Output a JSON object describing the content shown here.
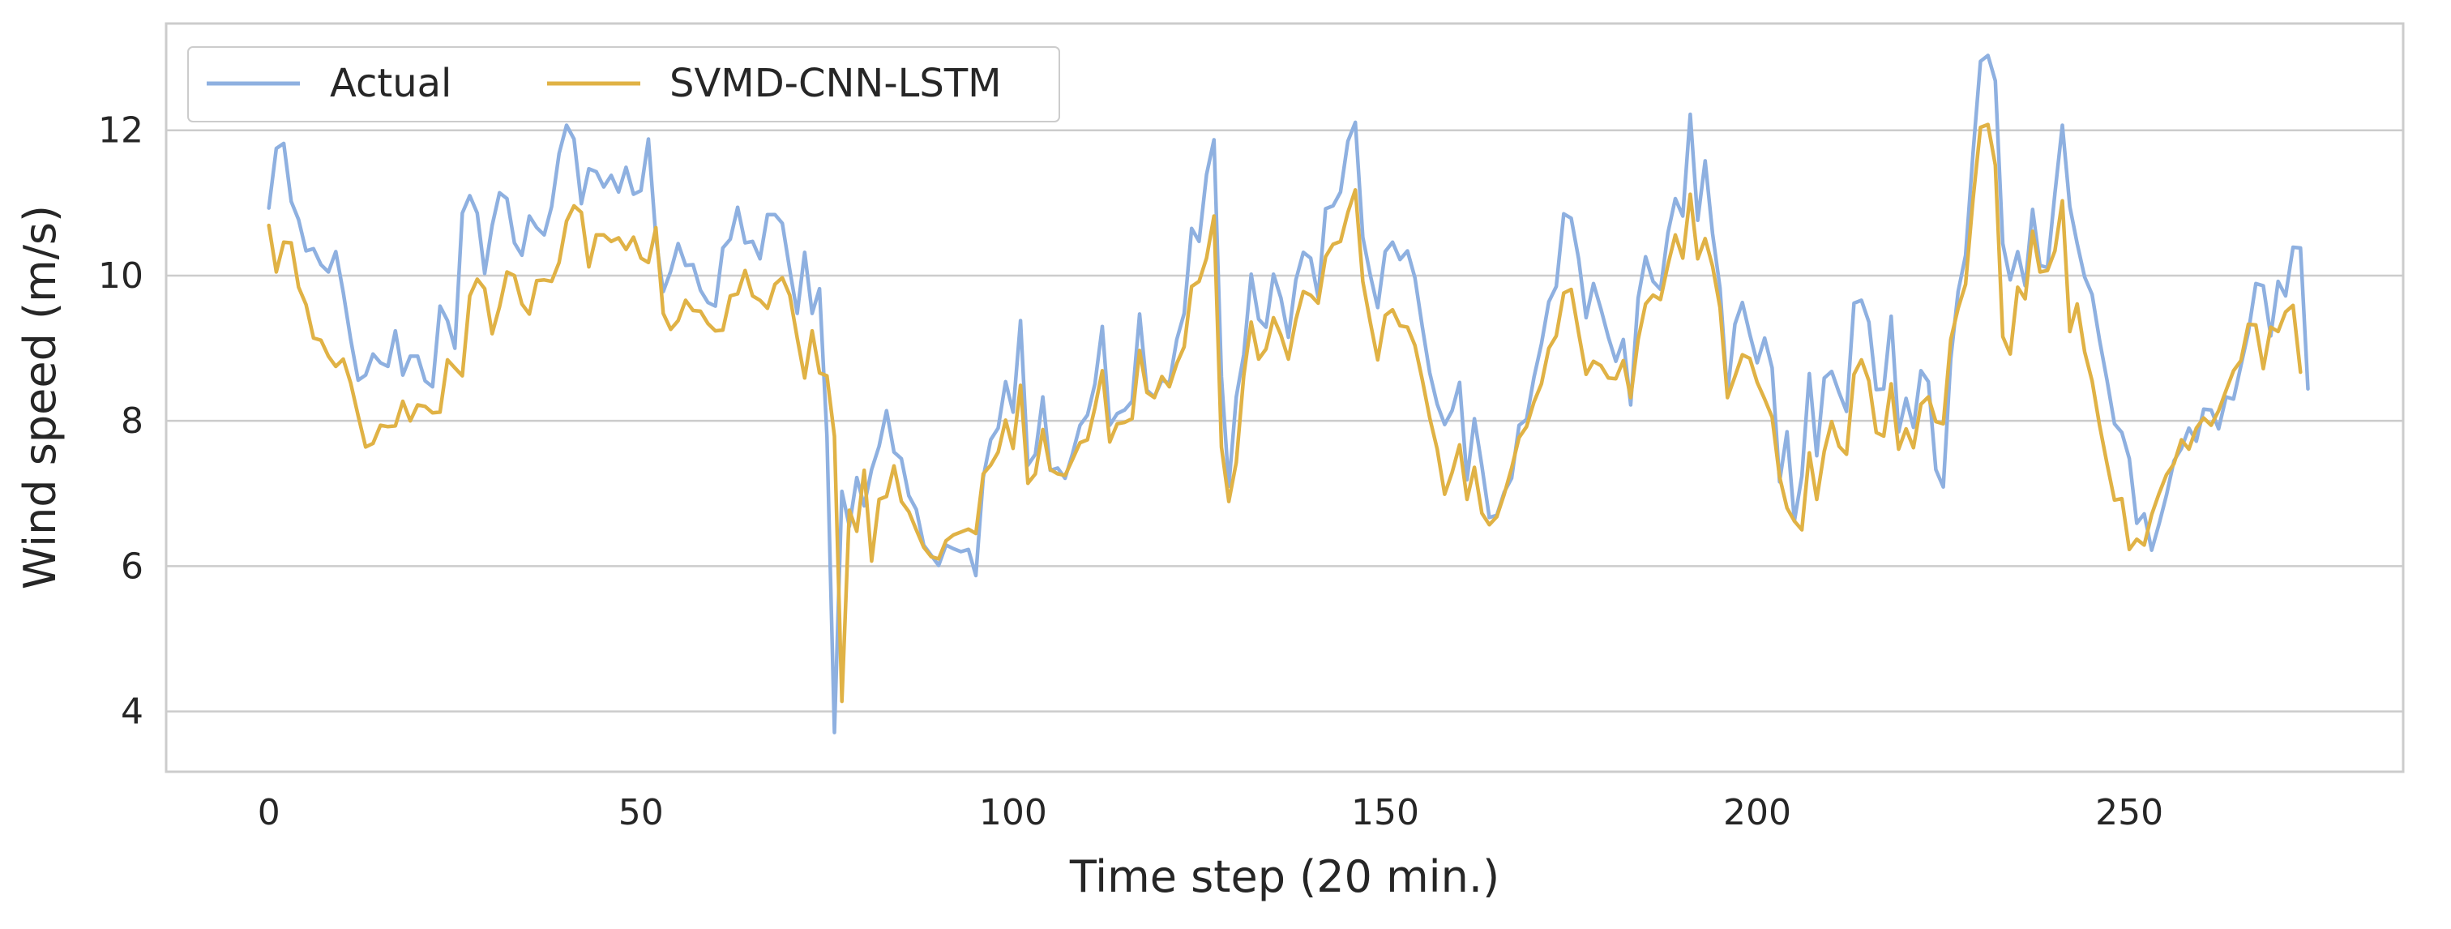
{
  "chart_data": {
    "type": "line",
    "title": "",
    "xlabel": "Time step (20 min.)",
    "ylabel": "Wind speed (m/s)",
    "xlim": [
      -13.8,
      286.8
    ],
    "ylim": [
      3.17,
      13.47
    ],
    "xticks": [
      0,
      50,
      100,
      150,
      200,
      250
    ],
    "yticks": [
      4,
      6,
      8,
      10,
      12
    ],
    "grid": "y",
    "legend": "top-left",
    "colors": {
      "axes": "#cccccc",
      "grid": "#cccccc",
      "text": "#262626"
    },
    "series": [
      {
        "name": "Actual",
        "color": "#8eb0e0",
        "values": [
          10.93,
          11.75,
          11.82,
          11.02,
          10.77,
          10.34,
          10.37,
          10.15,
          10.05,
          10.33,
          9.77,
          9.12,
          8.56,
          8.63,
          8.92,
          8.8,
          8.75,
          9.24,
          8.63,
          8.89,
          8.89,
          8.55,
          8.47,
          9.58,
          9.38,
          9.0,
          10.86,
          11.1,
          10.86,
          10.03,
          10.69,
          11.14,
          11.06,
          10.45,
          10.28,
          10.82,
          10.66,
          10.56,
          10.95,
          11.68,
          12.07,
          11.88,
          10.99,
          11.47,
          11.43,
          11.22,
          11.38,
          11.15,
          11.49,
          11.12,
          11.17,
          11.88,
          10.53,
          9.78,
          10.06,
          10.44,
          10.14,
          10.15,
          9.8,
          9.63,
          9.58,
          10.38,
          10.5,
          10.94,
          10.45,
          10.47,
          10.23,
          10.84,
          10.84,
          10.72,
          10.08,
          9.48,
          10.32,
          9.48,
          9.82,
          7.78,
          3.71,
          7.03,
          6.55,
          7.22,
          6.83,
          7.33,
          7.65,
          8.14,
          7.57,
          7.48,
          6.97,
          6.78,
          6.29,
          6.15,
          6.01,
          6.29,
          6.24,
          6.2,
          6.23,
          5.87,
          7.22,
          7.74,
          7.9,
          8.54,
          8.12,
          9.38,
          7.39,
          7.54,
          8.33,
          7.32,
          7.35,
          7.21,
          7.55,
          7.94,
          8.08,
          8.51,
          9.3,
          7.94,
          8.1,
          8.15,
          8.27,
          9.47,
          8.42,
          8.33,
          8.56,
          8.52,
          9.12,
          9.48,
          10.65,
          10.47,
          11.39,
          11.87,
          8.61,
          7.1,
          8.33,
          8.91,
          10.02,
          9.4,
          9.29,
          10.02,
          9.69,
          9.15,
          9.94,
          10.32,
          10.24,
          9.7,
          10.92,
          10.96,
          11.15,
          11.85,
          12.11,
          10.53,
          10.01,
          9.56,
          10.33,
          10.46,
          10.22,
          10.34,
          9.97,
          9.29,
          8.66,
          8.23,
          7.95,
          8.14,
          8.53,
          7.19,
          8.03,
          7.38,
          6.67,
          6.7,
          7.02,
          7.21,
          7.94,
          8.02,
          8.6,
          9.06,
          9.64,
          9.85,
          10.85,
          10.79,
          10.23,
          9.42,
          9.89,
          9.54,
          9.15,
          8.82,
          9.12,
          8.22,
          9.69,
          10.26,
          9.92,
          9.81,
          10.59,
          11.06,
          10.82,
          12.22,
          10.76,
          11.58,
          10.58,
          9.83,
          8.37,
          9.33,
          9.63,
          9.19,
          8.8,
          9.14,
          8.73,
          7.16,
          7.85,
          6.62,
          7.24,
          8.65,
          7.52,
          8.59,
          8.68,
          8.39,
          8.13,
          9.62,
          9.66,
          9.36,
          8.43,
          8.44,
          9.44,
          7.85,
          8.31,
          7.91,
          8.69,
          8.54,
          7.33,
          7.09,
          8.85,
          9.78,
          10.28,
          11.69,
          12.95,
          13.03,
          12.68,
          10.44,
          9.94,
          10.33,
          9.86,
          10.91,
          10.14,
          10.11,
          11.13,
          12.07,
          10.95,
          10.44,
          9.98,
          9.74,
          9.11,
          8.56,
          7.96,
          7.84,
          7.48,
          6.59,
          6.72,
          6.22,
          6.58,
          6.98,
          7.45,
          7.62,
          7.9,
          7.72,
          8.16,
          8.15,
          7.89,
          8.33,
          8.3,
          8.76,
          9.22,
          9.89,
          9.86,
          9.17,
          9.92,
          9.72,
          10.39,
          10.38,
          8.44
        ]
      },
      {
        "name": "SVMD-CNN-LSTM",
        "color": "#e0b245",
        "values": [
          10.69,
          10.05,
          10.46,
          10.45,
          9.84,
          9.6,
          9.14,
          9.11,
          8.89,
          8.75,
          8.85,
          8.52,
          8.07,
          7.64,
          7.69,
          7.94,
          7.92,
          7.93,
          8.27,
          8.0,
          8.22,
          8.2,
          8.11,
          8.12,
          8.84,
          8.73,
          8.62,
          9.72,
          9.95,
          9.82,
          9.2,
          9.57,
          10.05,
          10.0,
          9.61,
          9.47,
          9.93,
          9.94,
          9.92,
          10.18,
          10.75,
          10.96,
          10.87,
          10.12,
          10.56,
          10.56,
          10.47,
          10.52,
          10.36,
          10.53,
          10.24,
          10.18,
          10.66,
          9.48,
          9.26,
          9.38,
          9.66,
          9.52,
          9.51,
          9.34,
          9.24,
          9.25,
          9.72,
          9.75,
          10.07,
          9.72,
          9.66,
          9.55,
          9.88,
          9.97,
          9.73,
          9.14,
          8.59,
          9.24,
          8.66,
          8.62,
          7.79,
          4.14,
          6.77,
          6.48,
          7.32,
          6.07,
          6.92,
          6.96,
          7.38,
          6.89,
          6.75,
          6.5,
          6.26,
          6.13,
          6.1,
          6.35,
          6.43,
          6.47,
          6.51,
          6.45,
          7.27,
          7.39,
          7.57,
          8.01,
          7.62,
          8.49,
          7.14,
          7.27,
          7.88,
          7.33,
          7.27,
          7.25,
          7.47,
          7.7,
          7.74,
          8.18,
          8.69,
          7.71,
          7.96,
          7.98,
          8.03,
          8.97,
          8.39,
          8.32,
          8.61,
          8.47,
          8.79,
          9.02,
          9.85,
          9.92,
          10.24,
          10.82,
          7.64,
          6.89,
          7.43,
          8.62,
          9.36,
          8.85,
          8.99,
          9.42,
          9.18,
          8.85,
          9.39,
          9.78,
          9.73,
          9.62,
          10.26,
          10.43,
          10.47,
          10.87,
          11.18,
          9.92,
          9.36,
          8.84,
          9.45,
          9.53,
          9.31,
          9.29,
          9.04,
          8.56,
          8.04,
          7.61,
          6.99,
          7.29,
          7.67,
          6.92,
          7.36,
          6.73,
          6.57,
          6.68,
          6.99,
          7.35,
          7.77,
          7.92,
          8.26,
          8.51,
          9.0,
          9.17,
          9.76,
          9.81,
          9.21,
          8.64,
          8.82,
          8.76,
          8.59,
          8.58,
          8.83,
          8.32,
          9.12,
          9.61,
          9.73,
          9.67,
          10.15,
          10.56,
          10.24,
          11.12,
          10.23,
          10.51,
          10.13,
          9.56,
          8.32,
          8.61,
          8.91,
          8.86,
          8.53,
          8.3,
          8.05,
          7.23,
          6.8,
          6.62,
          6.5,
          7.56,
          6.92,
          7.58,
          7.99,
          7.65,
          7.54,
          8.64,
          8.84,
          8.55,
          7.84,
          7.79,
          8.51,
          7.61,
          7.89,
          7.63,
          8.23,
          8.33,
          7.99,
          7.96,
          9.12,
          9.55,
          9.88,
          11.05,
          12.04,
          12.08,
          11.52,
          9.16,
          8.92,
          9.84,
          9.68,
          10.61,
          10.05,
          10.07,
          10.34,
          11.03,
          9.23,
          9.61,
          8.95,
          8.55,
          7.94,
          7.41,
          6.91,
          6.93,
          6.23,
          6.37,
          6.29,
          6.71,
          7.0,
          7.26,
          7.41,
          7.74,
          7.61,
          7.9,
          8.04,
          7.94,
          8.14,
          8.42,
          8.69,
          8.83,
          9.33,
          9.32,
          8.72,
          9.29,
          9.23,
          9.5,
          9.59,
          8.67
        ]
      }
    ]
  }
}
